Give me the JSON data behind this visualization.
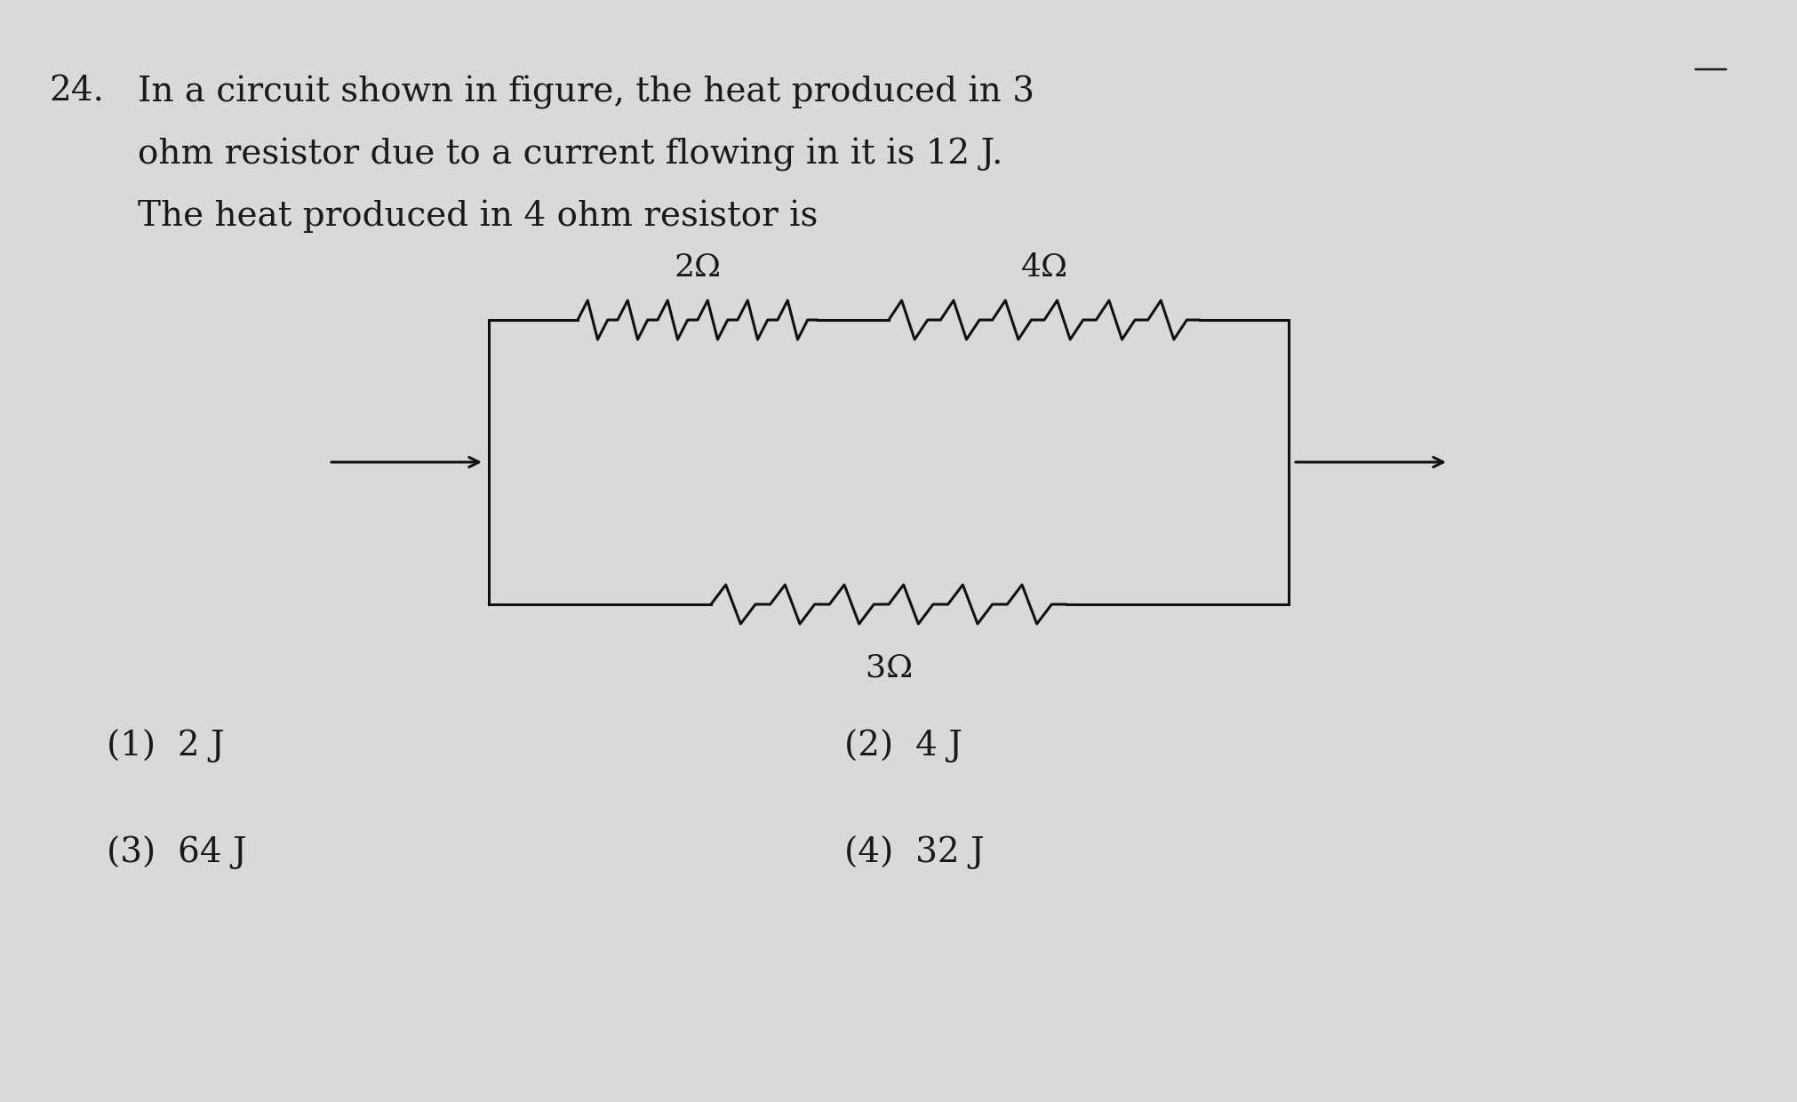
{
  "background_color": "#d9d9d9",
  "title_number": "24.",
  "question_text_line1": "In a circuit shown in figure, the heat produced in 3",
  "question_text_line2": "ohm resistor due to a current flowing in it is 12 J.",
  "question_text_line3": "The heat produced in 4 ohm resistor is",
  "options": [
    "(1)  2 J",
    "(2)  4 J",
    "(3)  64 J",
    "(4)  32 J"
  ],
  "resistor_labels": [
    "2Ω",
    "4Ω",
    "3Ω​"
  ],
  "text_color": "#1a1a1a",
  "circuit_color": "#111111",
  "font_size_question": 28,
  "font_size_options": 28,
  "font_size_circuit": 26
}
